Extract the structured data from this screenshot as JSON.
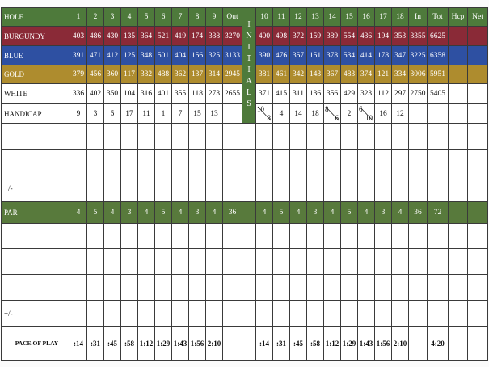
{
  "header": {
    "label": "HOLE",
    "front": [
      1,
      2,
      3,
      4,
      5,
      6,
      7,
      8,
      9
    ],
    "out": "Out",
    "back": [
      10,
      11,
      12,
      13,
      14,
      15,
      16,
      17,
      18
    ],
    "in": "In",
    "tot": "Tot",
    "hcp": "Hcp",
    "net": "Net",
    "color": "#4e7a3b"
  },
  "initials": "INITIALS",
  "tees": [
    {
      "label": "BURGUNDY",
      "color": "#8a2a37",
      "front": [
        403,
        486,
        430,
        135,
        364,
        521,
        419,
        174,
        338
      ],
      "out": 3270,
      "back": [
        400,
        498,
        372,
        159,
        389,
        554,
        436,
        194,
        353
      ],
      "in": 3355,
      "tot": 6625
    },
    {
      "label": "BLUE",
      "color": "#2e50a2",
      "front": [
        391,
        471,
        412,
        125,
        348,
        501,
        404,
        156,
        325
      ],
      "out": 3133,
      "back": [
        390,
        476,
        357,
        151,
        378,
        534,
        414,
        178,
        347
      ],
      "in": 3225,
      "tot": 6358
    },
    {
      "label": "GOLD",
      "color": "#ae8c2e",
      "front": [
        379,
        456,
        360,
        117,
        332,
        488,
        362,
        137,
        314
      ],
      "out": 2945,
      "back": [
        381,
        461,
        342,
        143,
        367,
        483,
        374,
        121,
        334
      ],
      "in": 3006,
      "tot": 5951
    },
    {
      "label": "WHITE",
      "color": "#ffffff",
      "front": [
        336,
        402,
        350,
        104,
        316,
        401,
        355,
        118,
        273
      ],
      "out": 2655,
      "back": [
        371,
        415,
        311,
        136,
        356,
        429,
        323,
        112,
        297
      ],
      "in": 2750,
      "tot": 5405
    }
  ],
  "handicap": {
    "label": "HANDICAP",
    "front": [
      9,
      3,
      5,
      17,
      11,
      1,
      7,
      15,
      13
    ],
    "back": [
      {
        "top": 10,
        "bottom": 8
      },
      4,
      14,
      18,
      {
        "top": 8,
        "bottom": 6
      },
      2,
      {
        "top": 6,
        "bottom": 10
      },
      16,
      12
    ]
  },
  "plus_minus": [
    "+/-",
    "+/-"
  ],
  "par": {
    "label": "PAR",
    "color": "#587a3c",
    "front": [
      4,
      5,
      4,
      3,
      4,
      5,
      4,
      3,
      4
    ],
    "out": 36,
    "back": [
      4,
      5,
      4,
      3,
      4,
      5,
      4,
      3,
      4
    ],
    "in": 36,
    "tot": 72
  },
  "pace": {
    "label": "PACE OF PLAY",
    "front": [
      ":14",
      ":31",
      ":45",
      ":58",
      "1:12",
      "1:29",
      "1:43",
      "1:56",
      "2:10"
    ],
    "back": [
      ":14",
      ":31",
      ":45",
      ":58",
      "1:12",
      "1:29",
      "1:43",
      "1:56",
      "2:10"
    ],
    "tot": "4:20"
  }
}
